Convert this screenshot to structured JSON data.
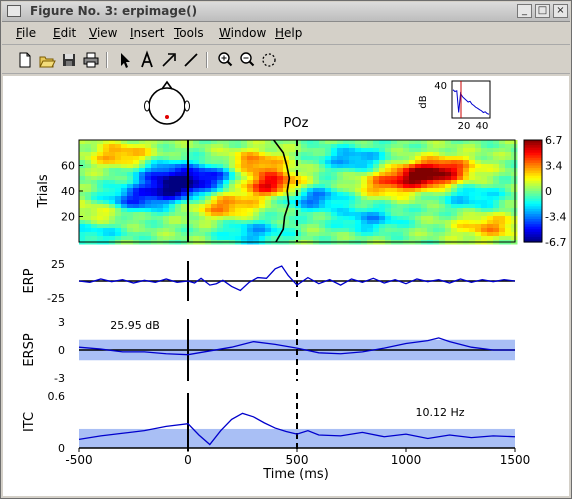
{
  "window": {
    "title": "Figure No. 3:  erpimage()",
    "controls": [
      "_",
      "□",
      "×"
    ]
  },
  "menu": [
    {
      "label": "File",
      "underline": "F",
      "rest": "ile"
    },
    {
      "label": "Edit",
      "underline": "E",
      "rest": "dit"
    },
    {
      "label": "View",
      "underline": "V",
      "rest": "iew"
    },
    {
      "label": "Insert",
      "underline": "I",
      "rest": "nsert"
    },
    {
      "label": "Tools",
      "underline": "T",
      "rest": "ools"
    },
    {
      "label": "Window",
      "underline": "W",
      "rest": "indow"
    },
    {
      "label": "Help",
      "underline": "H",
      "rest": "elp"
    }
  ],
  "toolbar": [
    "new-file-icon",
    "open-folder-icon",
    "save-icon",
    "print-icon",
    "select-arrow-icon",
    "insert-text-icon",
    "insert-arrow-icon",
    "insert-line-icon",
    "zoom-in-icon",
    "zoom-out-icon",
    "rotate-icon"
  ],
  "colors": {
    "line": "#0000cc",
    "band": "#a9bff5",
    "bg": "#ffffff"
  },
  "chart_data": [
    {
      "type": "heatmap",
      "panel": "erpimage",
      "title": "POz",
      "ylabel": "Trials",
      "yticks": [
        "20",
        "40",
        "60"
      ],
      "xlim": [
        -500,
        1500
      ],
      "ylim": [
        0,
        80
      ],
      "colorbar": {
        "ticks": [
          "6.7",
          "3.4",
          "0",
          "-3.4",
          "-6.7"
        ],
        "range": [
          -6.7,
          6.7
        ]
      },
      "blobs": [
        {
          "x": 380,
          "y": 45,
          "val": 5.5
        },
        {
          "x": 300,
          "y": 62,
          "val": 3.5
        },
        {
          "x": 1080,
          "y": 52,
          "val": 6.2
        },
        {
          "x": 900,
          "y": 45,
          "val": 3.0
        },
        {
          "x": 1200,
          "y": 58,
          "val": 3.0
        },
        {
          "x": -300,
          "y": 68,
          "val": 3.2
        },
        {
          "x": 170,
          "y": 28,
          "val": 3.5
        },
        {
          "x": 1380,
          "y": 12,
          "val": 3.0
        },
        {
          "x": -380,
          "y": 24,
          "val": 2.5
        },
        {
          "x": -60,
          "y": 42,
          "val": -6.0
        },
        {
          "x": -260,
          "y": 32,
          "val": -4.5
        },
        {
          "x": -110,
          "y": 55,
          "val": -3.5
        },
        {
          "x": 120,
          "y": 52,
          "val": -4.2
        },
        {
          "x": 570,
          "y": 35,
          "val": -3.8
        },
        {
          "x": 760,
          "y": 65,
          "val": -3.2
        },
        {
          "x": 830,
          "y": 18,
          "val": -2.8
        },
        {
          "x": 1300,
          "y": 35,
          "val": -2.5
        },
        {
          "x": 300,
          "y": 8,
          "val": -2.8
        },
        {
          "x": -420,
          "y": 8,
          "val": -2.0
        }
      ],
      "sorting_trace": [
        {
          "y": 0,
          "x": 410
        },
        {
          "y": 10,
          "x": 430
        },
        {
          "y": 20,
          "x": 450
        },
        {
          "y": 30,
          "x": 455
        },
        {
          "y": 40,
          "x": 462
        },
        {
          "y": 50,
          "x": 458
        },
        {
          "y": 60,
          "x": 460
        },
        {
          "y": 70,
          "x": 430
        },
        {
          "y": 80,
          "x": 400
        }
      ]
    },
    {
      "type": "line",
      "panel": "erp",
      "ylabel": "ERP",
      "yticks": [
        "25",
        "-25"
      ],
      "ylim": [
        -25,
        25
      ],
      "x": [
        -500,
        -450,
        -400,
        -350,
        -300,
        -250,
        -200,
        -150,
        -100,
        -50,
        0,
        30,
        60,
        100,
        130,
        160,
        200,
        240,
        280,
        320,
        360,
        400,
        430,
        460,
        500,
        550,
        600,
        650,
        700,
        750,
        800,
        850,
        900,
        950,
        1000,
        1050,
        1100,
        1150,
        1200,
        1250,
        1300,
        1350,
        1400,
        1450,
        1500
      ],
      "y": [
        0,
        -2,
        3,
        -1,
        2,
        -3,
        1,
        -2,
        3,
        -2,
        0,
        -3,
        4,
        -6,
        -4,
        1,
        -8,
        -14,
        -2,
        5,
        4,
        18,
        22,
        8,
        -6,
        5,
        -4,
        2,
        -6,
        3,
        -2,
        4,
        -3,
        2,
        -4,
        3,
        -1,
        2,
        -3,
        3,
        -2,
        2,
        -1,
        2,
        0
      ]
    },
    {
      "type": "line",
      "panel": "ersp",
      "ylabel": "ERSP",
      "yticks": [
        "3",
        "0",
        "-3"
      ],
      "ylim": [
        -3,
        3
      ],
      "annotation": "25.95 dB",
      "band": [
        -1.1,
        1.1
      ],
      "x": [
        -500,
        -400,
        -300,
        -200,
        -100,
        0,
        100,
        200,
        300,
        400,
        500,
        600,
        700,
        800,
        900,
        1000,
        1100,
        1150,
        1200,
        1300,
        1400,
        1500
      ],
      "y": [
        0.3,
        0.1,
        -0.2,
        -0.2,
        -0.4,
        -0.5,
        -0.1,
        0.3,
        0.9,
        0.6,
        0.2,
        -0.3,
        -0.4,
        -0.2,
        0.2,
        0.7,
        1.0,
        1.3,
        0.9,
        0.3,
        0.0,
        0.0
      ]
    },
    {
      "type": "line",
      "panel": "itc",
      "ylabel": "ITC",
      "yticks": [
        "0.6",
        "0"
      ],
      "ylim": [
        0,
        0.6
      ],
      "annotation": "10.12 Hz",
      "band": [
        0,
        0.22
      ],
      "x": [
        -500,
        -400,
        -300,
        -200,
        -100,
        0,
        50,
        100,
        150,
        200,
        250,
        300,
        350,
        400,
        450,
        500,
        550,
        600,
        700,
        800,
        900,
        1000,
        1100,
        1200,
        1300,
        1400,
        1500
      ],
      "y": [
        0.1,
        0.14,
        0.17,
        0.2,
        0.25,
        0.28,
        0.15,
        0.04,
        0.2,
        0.33,
        0.4,
        0.36,
        0.29,
        0.23,
        0.19,
        0.16,
        0.2,
        0.15,
        0.14,
        0.18,
        0.13,
        0.16,
        0.11,
        0.15,
        0.12,
        0.14,
        0.13
      ]
    },
    {
      "type": "line",
      "panel": "psd-inset",
      "ylabel": "dB",
      "yticks": [
        "40"
      ],
      "xticks": [
        "20",
        "40"
      ]
    }
  ],
  "axis": {
    "xticks": [
      "-500",
      "0",
      "500",
      "1000",
      "1500"
    ],
    "xlabel": "Time (ms)"
  }
}
